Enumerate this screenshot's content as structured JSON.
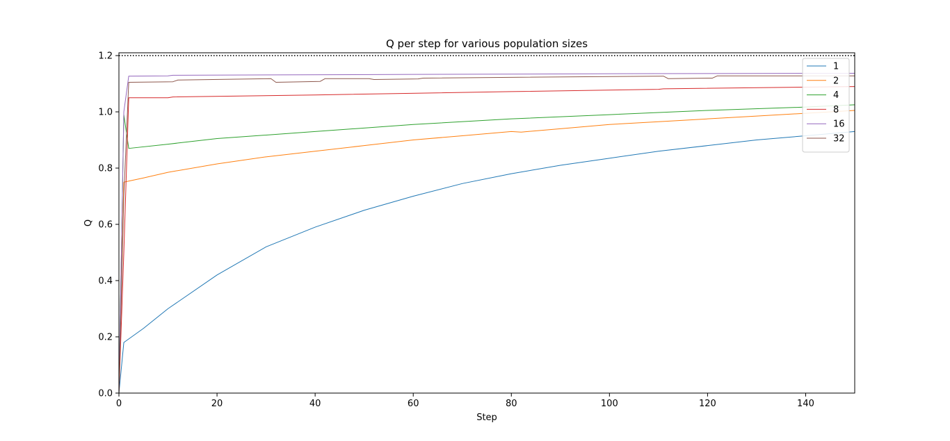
{
  "chart_data": {
    "type": "line",
    "title": "Q per step for various population sizes",
    "xlabel": "Step",
    "ylabel": "Q",
    "xlim": [
      0,
      150
    ],
    "ylim": [
      0,
      1.21
    ],
    "xticks": [
      0,
      20,
      40,
      60,
      80,
      100,
      120,
      140
    ],
    "yticks": [
      0.0,
      0.2,
      0.4,
      0.6,
      0.8,
      1.0,
      1.2
    ],
    "xtick_labels": [
      "0",
      "20",
      "40",
      "60",
      "80",
      "100",
      "120",
      "140"
    ],
    "ytick_labels": [
      "0.0",
      "0.2",
      "0.4",
      "0.6",
      "0.8",
      "1.0",
      "1.2"
    ],
    "grid": false,
    "legend_position": "top-right",
    "reference_line": {
      "y": 1.2,
      "style": "dotted",
      "color": "#000000"
    },
    "series": [
      {
        "name": "1",
        "color": "#1f77b4",
        "x": [
          0,
          1,
          5,
          10,
          20,
          30,
          40,
          50,
          60,
          70,
          80,
          90,
          100,
          110,
          120,
          130,
          140,
          150
        ],
        "y": [
          0.0,
          0.18,
          0.23,
          0.3,
          0.42,
          0.52,
          0.59,
          0.65,
          0.7,
          0.745,
          0.78,
          0.81,
          0.835,
          0.86,
          0.88,
          0.9,
          0.915,
          0.93
        ]
      },
      {
        "name": "2",
        "color": "#ff7f0e",
        "x": [
          0,
          1,
          5,
          10,
          20,
          30,
          40,
          50,
          60,
          70,
          80,
          82,
          90,
          100,
          110,
          120,
          130,
          140,
          150
        ],
        "y": [
          0.0,
          0.75,
          0.765,
          0.785,
          0.815,
          0.84,
          0.86,
          0.88,
          0.9,
          0.915,
          0.93,
          0.928,
          0.94,
          0.955,
          0.965,
          0.975,
          0.985,
          0.995,
          1.005
        ]
      },
      {
        "name": "4",
        "color": "#2ca02c",
        "x": [
          0,
          1,
          2,
          10,
          20,
          40,
          60,
          80,
          100,
          120,
          140,
          150
        ],
        "y": [
          0.0,
          0.99,
          0.87,
          0.885,
          0.905,
          0.93,
          0.955,
          0.975,
          0.99,
          1.005,
          1.017,
          1.025
        ]
      },
      {
        "name": "8",
        "color": "#d62728",
        "x": [
          0,
          1,
          2,
          10,
          11,
          40,
          80,
          110,
          111,
          150
        ],
        "y": [
          0.0,
          0.5,
          1.05,
          1.05,
          1.053,
          1.06,
          1.072,
          1.08,
          1.082,
          1.09
        ]
      },
      {
        "name": "16",
        "color": "#9467bd",
        "x": [
          0,
          1,
          2,
          10,
          11,
          60,
          110,
          140,
          150
        ],
        "y": [
          0.0,
          1.0,
          1.127,
          1.128,
          1.13,
          1.133,
          1.136,
          1.137,
          1.137
        ]
      },
      {
        "name": "32",
        "color": "#8c564b",
        "x": [
          0,
          1,
          2,
          11,
          12,
          31,
          32,
          41,
          42,
          51,
          52,
          61,
          62,
          111,
          112,
          121,
          122,
          150
        ],
        "y": [
          0.0,
          0.7,
          1.105,
          1.107,
          1.113,
          1.118,
          1.105,
          1.108,
          1.118,
          1.118,
          1.115,
          1.117,
          1.12,
          1.127,
          1.118,
          1.12,
          1.128,
          1.128
        ]
      }
    ]
  }
}
